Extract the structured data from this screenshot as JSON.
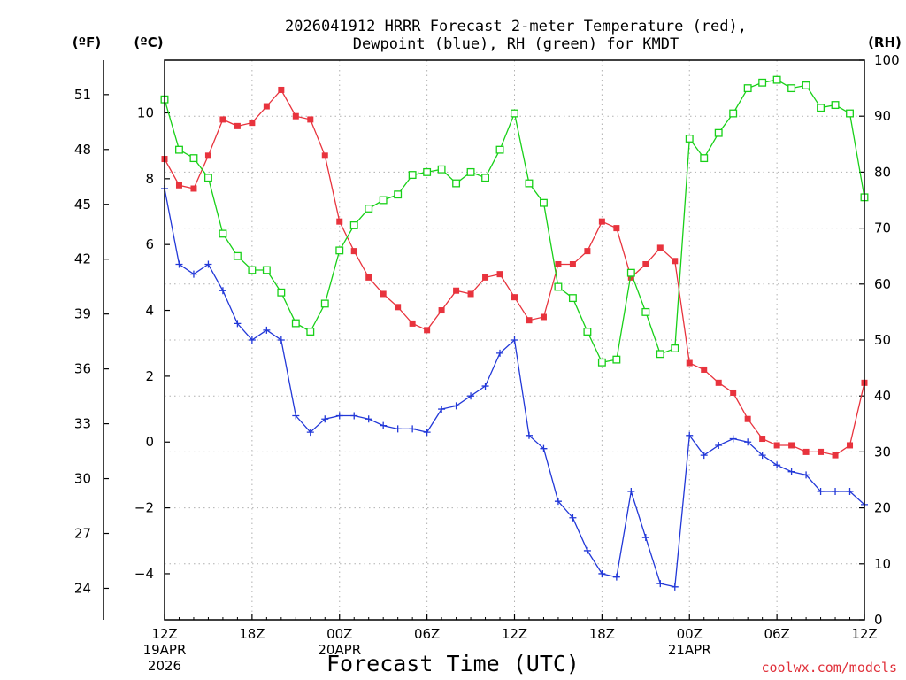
{
  "title": {
    "line1": "2026041912 HRRR Forecast 2-meter Temperature (red),",
    "line2": "Dewpoint (blue), RH (green) for KMDT"
  },
  "axes": {
    "f_unit": "(ºF)",
    "c_unit": "(ºC)",
    "rh_unit": "(RH)",
    "xlabel": "Forecast Time (UTC)",
    "credit": "coolwx.com/models"
  },
  "chart_data": {
    "type": "line",
    "title": "2026041912 HRRR Forecast 2-meter Temperature (red), Dewpoint (blue), RH (green) for KMDT",
    "xlabel": "Forecast Time (UTC)",
    "x_hours": [
      0,
      1,
      2,
      3,
      4,
      5,
      6,
      7,
      8,
      9,
      10,
      11,
      12,
      13,
      14,
      15,
      16,
      17,
      18,
      19,
      20,
      21,
      22,
      23,
      24,
      25,
      26,
      27,
      28,
      29,
      30,
      31,
      32,
      33,
      34,
      35,
      36,
      37,
      38,
      39,
      40,
      41,
      42,
      43,
      44,
      45,
      46,
      47,
      48
    ],
    "x_ticks": [
      {
        "hour": 0,
        "label": "12Z",
        "sub1": "19APR",
        "sub2": "2026"
      },
      {
        "hour": 6,
        "label": "18Z"
      },
      {
        "hour": 12,
        "label": "00Z",
        "sub1": "20APR"
      },
      {
        "hour": 18,
        "label": "06Z"
      },
      {
        "hour": 24,
        "label": "12Z"
      },
      {
        "hour": 30,
        "label": "18Z"
      },
      {
        "hour": 36,
        "label": "00Z",
        "sub1": "21APR"
      },
      {
        "hour": 42,
        "label": "06Z"
      },
      {
        "hour": 48,
        "label": "12Z"
      }
    ],
    "c_axis": {
      "ylim": [
        -5.4,
        11.6
      ],
      "ticks": [
        -4,
        -2,
        0,
        2,
        4,
        6,
        8,
        10
      ]
    },
    "f_axis": {
      "ticks": [
        24,
        27,
        30,
        33,
        36,
        39,
        42,
        45,
        48,
        51
      ]
    },
    "rh_axis": {
      "ylim": [
        0,
        100
      ],
      "ticks": [
        0,
        10,
        20,
        30,
        40,
        50,
        60,
        70,
        80,
        90,
        100
      ]
    },
    "series": [
      {
        "name": "Temperature",
        "unit": "C",
        "color": "#e8333d",
        "marker": "filled-square",
        "values": [
          8.6,
          7.8,
          7.7,
          8.7,
          9.8,
          9.6,
          9.7,
          10.2,
          10.7,
          9.9,
          9.8,
          8.7,
          6.7,
          5.8,
          5.0,
          4.5,
          4.1,
          3.6,
          3.4,
          4.0,
          4.6,
          4.5,
          5.0,
          5.1,
          4.4,
          3.7,
          3.8,
          5.4,
          5.4,
          5.8,
          6.7,
          6.5,
          5.0,
          5.4,
          5.9,
          5.5,
          2.4,
          2.2,
          1.8,
          1.5,
          0.7,
          0.1,
          -0.1,
          -0.1,
          -0.3,
          -0.3,
          -0.4,
          -0.1,
          1.8
        ]
      },
      {
        "name": "Dewpoint",
        "unit": "C",
        "color": "#2238d8",
        "marker": "plus",
        "values": [
          7.7,
          5.4,
          5.1,
          5.4,
          4.6,
          3.6,
          3.1,
          3.4,
          3.1,
          0.8,
          0.3,
          0.7,
          0.8,
          0.8,
          0.7,
          0.5,
          0.4,
          0.4,
          0.3,
          1.0,
          1.1,
          1.4,
          1.7,
          2.7,
          3.1,
          0.2,
          -0.2,
          -1.8,
          -2.3,
          -3.3,
          -4.0,
          -4.1,
          -1.5,
          -2.9,
          -4.3,
          -4.4,
          0.2,
          -0.4,
          -0.1,
          0.1,
          0.0,
          -0.4,
          -0.7,
          -0.9,
          -1.0,
          -1.5,
          -1.5,
          -1.5,
          -1.9
        ]
      },
      {
        "name": "RH",
        "unit": "%",
        "color": "#18d018",
        "marker": "open-square",
        "values": [
          93.0,
          84.0,
          82.5,
          79.0,
          69.0,
          65.0,
          62.5,
          62.5,
          58.5,
          53.0,
          51.5,
          56.5,
          66.0,
          70.5,
          73.5,
          75.0,
          76.0,
          79.5,
          80.0,
          80.5,
          78.0,
          80.0,
          79.0,
          84.0,
          90.5,
          78.0,
          74.5,
          59.5,
          57.5,
          51.5,
          46.0,
          46.5,
          62.0,
          55.0,
          47.5,
          48.5,
          86.0,
          82.5,
          87.0,
          90.5,
          95.0,
          96.0,
          96.5,
          95.0,
          95.5,
          91.5,
          92.0,
          90.5,
          75.5
        ]
      }
    ]
  }
}
